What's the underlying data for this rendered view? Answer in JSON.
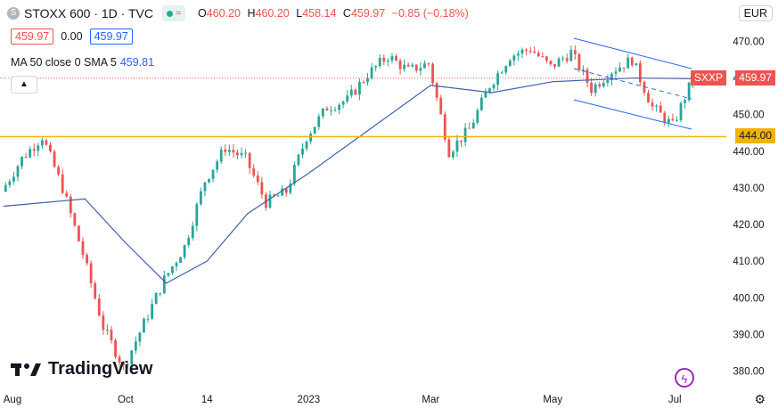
{
  "header": {
    "symbol_icon": "S",
    "symbol": "STOXX 600 · 1D · TVC",
    "open": {
      "label": "O",
      "value": "460.20"
    },
    "high": {
      "label": "H",
      "value": "460.20"
    },
    "low": {
      "label": "L",
      "value": "458.14"
    },
    "close": {
      "label": "C",
      "value": "459.97"
    },
    "change": "−0.85 (−0.18%)",
    "currency": "EUR"
  },
  "quote": {
    "sell": "459.97",
    "spread": "0.00",
    "buy": "459.97"
  },
  "indicator": {
    "label": "MA 50 close 0 SMA 5",
    "value": "459.81"
  },
  "badges": {
    "ticker": "SXXP",
    "last_price": "459.97",
    "support": "444.00"
  },
  "branding": {
    "name": "TradingView"
  },
  "colors": {
    "up": "#26a69a",
    "down": "#ef5350",
    "ma": "#3f63a9",
    "support": "#f0b400",
    "channel": "#2962ff"
  },
  "chart_data": {
    "type": "candlestick",
    "title": "STOXX 600 · 1D · TVC",
    "ylim": [
      376,
      474
    ],
    "y_ticks": [
      380,
      390,
      400,
      410,
      420,
      430,
      440,
      450,
      460,
      470
    ],
    "x_tick_labels": [
      "Aug",
      "Oct",
      "14",
      "2023",
      "Mar",
      "May",
      "Jul"
    ],
    "close_series": [
      {
        "x": "Aug",
        "y": 429
      },
      {
        "x": "Aug-mid",
        "y": 438
      },
      {
        "x": "Aug-late",
        "y": 444
      },
      {
        "x": "Sep-early",
        "y": 430
      },
      {
        "x": "Sep-mid",
        "y": 412
      },
      {
        "x": "Sep-late",
        "y": 392
      },
      {
        "x": "Oct",
        "y": 381
      },
      {
        "x": "Oct-mid",
        "y": 393
      },
      {
        "x": "Oct-late",
        "y": 405
      },
      {
        "x": "Nov-early",
        "y": 414
      },
      {
        "x": "14",
        "y": 432
      },
      {
        "x": "Nov-late",
        "y": 441
      },
      {
        "x": "Dec-early",
        "y": 438
      },
      {
        "x": "Dec-mid",
        "y": 426
      },
      {
        "x": "Dec-late",
        "y": 429
      },
      {
        "x": "2023",
        "y": 444
      },
      {
        "x": "Jan-mid",
        "y": 452
      },
      {
        "x": "Jan-late",
        "y": 454
      },
      {
        "x": "Feb-early",
        "y": 461
      },
      {
        "x": "Feb-mid",
        "y": 466
      },
      {
        "x": "Feb-late",
        "y": 462
      },
      {
        "x": "Mar",
        "y": 464
      },
      {
        "x": "Mar-mid",
        "y": 440
      },
      {
        "x": "Mar-late",
        "y": 446
      },
      {
        "x": "Apr-early",
        "y": 458
      },
      {
        "x": "Apr-mid",
        "y": 466
      },
      {
        "x": "Apr-late",
        "y": 468
      },
      {
        "x": "May",
        "y": 463
      },
      {
        "x": "May-mid",
        "y": 467
      },
      {
        "x": "May-late",
        "y": 457
      },
      {
        "x": "Jun-early",
        "y": 462
      },
      {
        "x": "Jun-mid",
        "y": 465
      },
      {
        "x": "Jun-late",
        "y": 452
      },
      {
        "x": "Jul",
        "y": 447
      },
      {
        "x": "Jul-mid",
        "y": 459.97
      }
    ],
    "ma50": [
      {
        "x": "Aug",
        "y": 425
      },
      {
        "x": "Sep-mid",
        "y": 427
      },
      {
        "x": "Oct",
        "y": 415
      },
      {
        "x": "Oct-late",
        "y": 404
      },
      {
        "x": "14",
        "y": 410
      },
      {
        "x": "Dec-early",
        "y": 423
      },
      {
        "x": "2023",
        "y": 434
      },
      {
        "x": "Feb-early",
        "y": 446
      },
      {
        "x": "Mar",
        "y": 458
      },
      {
        "x": "Apr-early",
        "y": 456
      },
      {
        "x": "May",
        "y": 459
      },
      {
        "x": "Jun-mid",
        "y": 460
      },
      {
        "x": "Jul-mid",
        "y": 459.81
      }
    ],
    "support_level": 444.0,
    "last_price": 459.97
  }
}
